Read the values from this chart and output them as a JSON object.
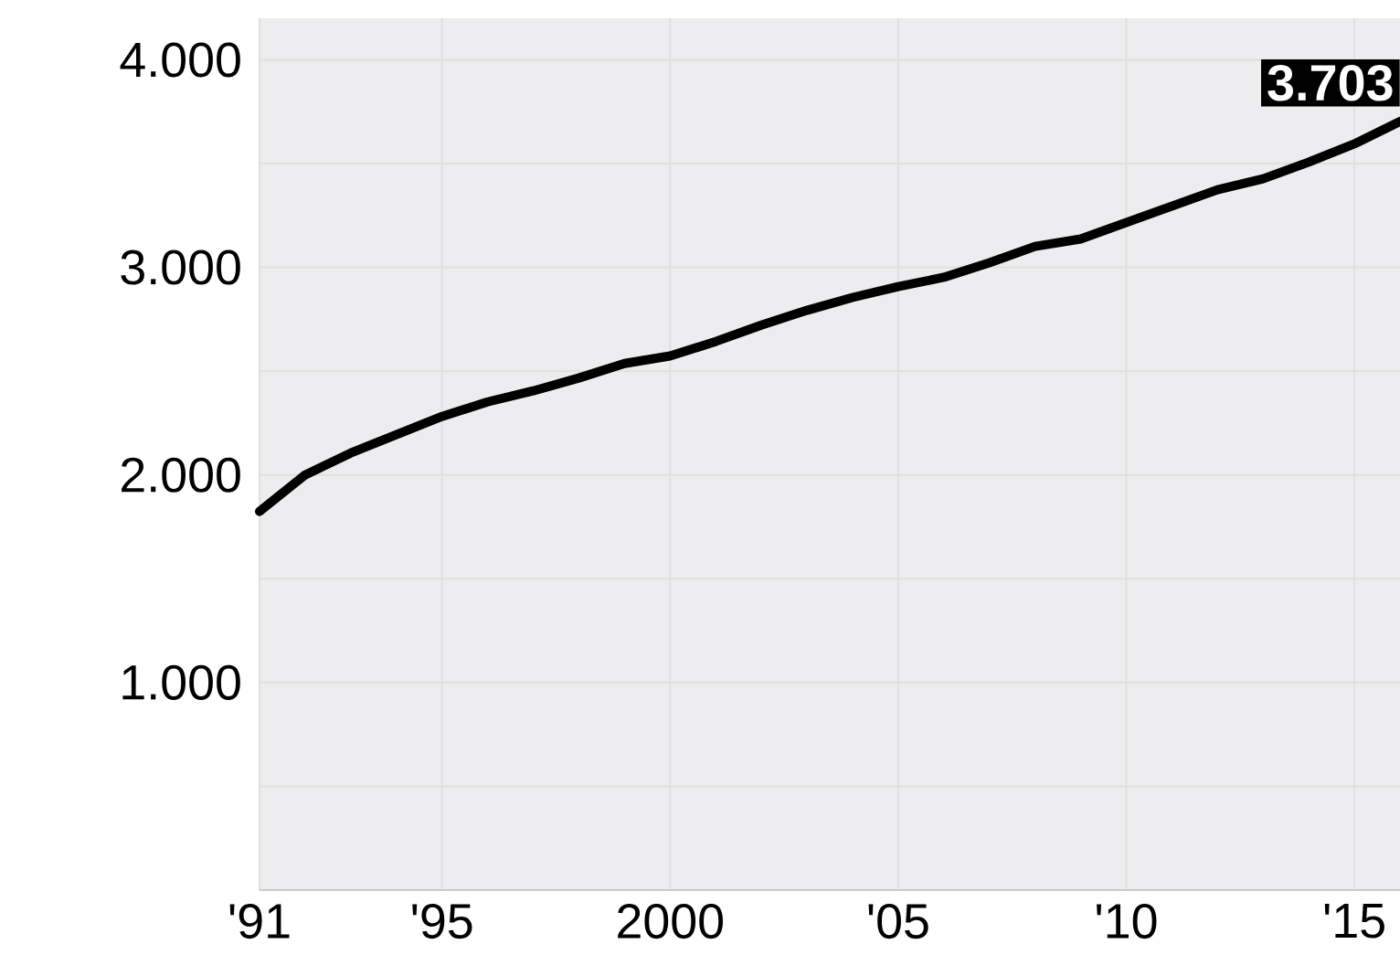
{
  "chart_data": {
    "type": "line",
    "x": [
      1991,
      1992,
      1993,
      1994,
      1995,
      1996,
      1997,
      1998,
      1999,
      2000,
      2001,
      2002,
      2003,
      2004,
      2005,
      2006,
      2007,
      2008,
      2009,
      2010,
      2011,
      2012,
      2013,
      2014,
      2015,
      2016
    ],
    "series": [
      {
        "color": "#000000",
        "values": [
          1824,
          2000,
          2106,
          2194,
          2282,
          2352,
          2405,
          2467,
          2537,
          2573,
          2643,
          2722,
          2793,
          2855,
          2907,
          2952,
          3022,
          3101,
          3137,
          3216,
          3295,
          3374,
          3427,
          3507,
          3595,
          3703
        ]
      }
    ],
    "xlim": [
      1991,
      2016
    ],
    "ylim": [
      0,
      4200
    ],
    "xticks": [
      {
        "value": 1991,
        "label": "'91"
      },
      {
        "value": 1995,
        "label": "'95"
      },
      2000,
      {
        "value": 2005,
        "label": "'05"
      },
      {
        "value": 2010,
        "label": "'10"
      },
      {
        "value": 2015,
        "label": "'15"
      }
    ],
    "yticks": [
      {
        "value": 500,
        "label": null
      },
      {
        "value": 1000,
        "label": "1.000"
      },
      {
        "value": 1500,
        "label": null
      },
      {
        "value": 2000,
        "label": "2.000"
      },
      {
        "value": 2500,
        "label": null
      },
      {
        "value": 3000,
        "label": "3.000"
      },
      {
        "value": 3500,
        "label": null
      },
      {
        "value": 4000,
        "label": "4.000"
      }
    ],
    "annotations": [
      {
        "text": "3.703",
        "x": 2016,
        "y": 3703
      }
    ],
    "grid": true,
    "marker": "none",
    "line_style": "solid"
  }
}
